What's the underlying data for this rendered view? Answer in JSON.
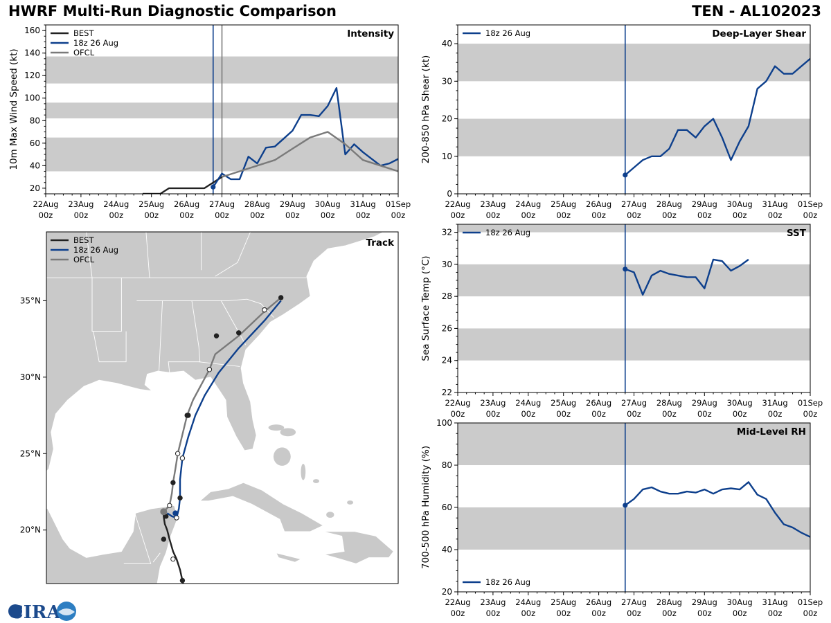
{
  "header": {
    "title_left": "HWRF Multi-Run Diagnostic Comparison",
    "title_right": "TEN - AL102023"
  },
  "colors": {
    "best": "#222222",
    "run": "#0d3f8c",
    "ofcl": "#7a7a7a",
    "band": "#cbcbcb"
  },
  "logo": {
    "text": "CIRA"
  },
  "chart_data": [
    {
      "id": "intensity",
      "type": "line",
      "title": "Intensity",
      "ylabel": "10m Max Wind Speed (kt)",
      "ylim": [
        15,
        165
      ],
      "yticks": [
        20,
        40,
        60,
        80,
        100,
        120,
        140,
        160
      ],
      "bands": [
        [
          35,
          65
        ],
        [
          82,
          96
        ],
        [
          113,
          137
        ]
      ],
      "x_unit": "days since 22 Aug 00z",
      "xlim": [
        0,
        10
      ],
      "xticks": [
        "22Aug\n00z",
        "23Aug\n00z",
        "24Aug\n00z",
        "25Aug\n00z",
        "26Aug\n00z",
        "27Aug\n00z",
        "28Aug\n00z",
        "29Aug\n00z",
        "30Aug\n00z",
        "31Aug\n00z",
        "01Sep\n00z"
      ],
      "vlines": [
        {
          "x": 4.75,
          "color": "run"
        },
        {
          "x": 5.0,
          "color": "ofcl"
        }
      ],
      "legend": [
        "BEST",
        "18z 26 Aug",
        "OFCL"
      ],
      "series": [
        {
          "name": "BEST",
          "color": "best",
          "x": [
            2.75,
            3.0,
            3.25,
            3.5,
            3.75,
            4.0,
            4.25,
            4.5,
            4.75,
            5.0
          ],
          "y": [
            15,
            15,
            15,
            20,
            20,
            20,
            20,
            20,
            25,
            30
          ]
        },
        {
          "name": "18z 26 Aug",
          "color": "run",
          "x": [
            4.75,
            5.0,
            5.25,
            5.5,
            5.75,
            6.0,
            6.25,
            6.5,
            6.75,
            7.0,
            7.25,
            7.5,
            7.75,
            8.0,
            8.25,
            8.5,
            8.75,
            9.0,
            9.25,
            9.5,
            9.75,
            10.0
          ],
          "y": [
            21,
            33,
            28,
            28,
            48,
            42,
            56,
            57,
            64,
            71,
            85,
            85,
            84,
            93,
            109,
            50,
            59,
            52,
            46,
            40,
            42,
            46
          ],
          "start_marker": true
        },
        {
          "name": "OFCL",
          "color": "ofcl",
          "x": [
            5.0,
            5.5,
            6.0,
            6.5,
            7.0,
            7.5,
            8.0,
            8.5,
            9.0,
            9.5,
            10.0
          ],
          "y": [
            30,
            35,
            40,
            45,
            55,
            65,
            70,
            59,
            45,
            40,
            35
          ]
        }
      ]
    },
    {
      "id": "shear",
      "type": "line",
      "title": "Deep-Layer Shear",
      "ylabel": "200-850 hPa Shear (kt)",
      "ylim": [
        0,
        45
      ],
      "yticks": [
        0,
        10,
        20,
        30,
        40
      ],
      "bands": [
        [
          10,
          20
        ],
        [
          30,
          40
        ]
      ],
      "x_unit": "days since 22 Aug 00z",
      "xlim": [
        0,
        10
      ],
      "xticks": [
        "22Aug\n00z",
        "23Aug\n00z",
        "24Aug\n00z",
        "25Aug\n00z",
        "26Aug\n00z",
        "27Aug\n00z",
        "28Aug\n00z",
        "29Aug\n00z",
        "30Aug\n00z",
        "31Aug\n00z",
        "01Sep\n00z"
      ],
      "vlines": [
        {
          "x": 4.75,
          "color": "run"
        }
      ],
      "legend": [
        "18z 26 Aug"
      ],
      "series": [
        {
          "name": "18z 26 Aug",
          "color": "run",
          "x": [
            4.75,
            5.0,
            5.25,
            5.5,
            5.75,
            6.0,
            6.25,
            6.5,
            6.75,
            7.0,
            7.25,
            7.5,
            7.75,
            8.0,
            8.25,
            8.5,
            8.75,
            9.0,
            9.25,
            9.5,
            9.75,
            10.0
          ],
          "y": [
            5,
            7,
            9,
            10,
            10,
            12,
            17,
            17,
            15,
            18,
            20,
            15,
            9,
            14,
            18,
            28,
            30,
            34,
            32,
            32,
            34,
            36
          ],
          "start_marker": true
        }
      ]
    },
    {
      "id": "track",
      "type": "line",
      "title": "Track",
      "lon_range": [
        -98,
        -68
      ],
      "lat_range": [
        16.5,
        39.5
      ],
      "ytick_labels": [
        "20°N",
        "25°N",
        "30°N",
        "35°N"
      ],
      "yticks": [
        20,
        25,
        30,
        35
      ],
      "legend": [
        "BEST",
        "18z 26 Aug",
        "OFCL"
      ],
      "series": [
        {
          "name": "BEST",
          "color": "best",
          "lon": [
            -86.2,
            -86.4,
            -86.6,
            -86.9,
            -87.2,
            -87.5,
            -87.7,
            -87.9,
            -88.0,
            -88.0,
            -87.8
          ],
          "lat": [
            16.1,
            16.7,
            17.4,
            18.1,
            18.6,
            19.4,
            20.0,
            20.4,
            20.9,
            21.2,
            21.1
          ],
          "markers": [
            [
              -86.4,
              16.7,
              "f"
            ],
            [
              -87.2,
              18.1,
              "o"
            ],
            [
              -88.0,
              19.4,
              "f"
            ],
            [
              -87.8,
              20.9,
              "f"
            ]
          ]
        },
        {
          "name": "18z 26 Aug",
          "color": "run",
          "lon": [
            -87.7,
            -87.3,
            -86.9,
            -86.7,
            -86.6,
            -86.6,
            -86.4,
            -85.9,
            -85.3,
            -84.5,
            -83.3,
            -81.6,
            -79.4,
            -78.0
          ],
          "lat": [
            21.1,
            20.9,
            20.8,
            21.4,
            22.1,
            23.3,
            24.7,
            26.1,
            27.5,
            28.8,
            30.3,
            31.9,
            33.7,
            35.0
          ],
          "markers": [
            [
              -86.9,
              20.8,
              "o"
            ],
            [
              -86.6,
              22.1,
              "f"
            ],
            [
              -86.4,
              24.7,
              "o"
            ],
            [
              -85.9,
              27.5,
              "f"
            ],
            [
              -84.1,
              30.5,
              "o"
            ],
            [
              -81.6,
              32.9,
              "f"
            ],
            [
              -79.4,
              34.4,
              "o"
            ]
          ]
        },
        {
          "name": "OFCL",
          "color": "ofcl",
          "lon": [
            -88.0,
            -87.5,
            -87.3,
            -87.2,
            -87.0,
            -86.8,
            -86.0,
            -85.5,
            -84.1,
            -83.6,
            -81.6,
            -79.4,
            -78.0
          ],
          "lat": [
            21.2,
            21.6,
            22.4,
            23.1,
            24.0,
            25.0,
            27.5,
            28.5,
            30.5,
            31.5,
            32.7,
            34.3,
            35.2
          ],
          "markers": [
            [
              -88.0,
              21.2,
              "g"
            ],
            [
              -87.5,
              21.6,
              "o"
            ],
            [
              -87.2,
              23.1,
              "f"
            ],
            [
              -86.8,
              25.0,
              "o"
            ],
            [
              -86.0,
              27.5,
              "f"
            ],
            [
              -84.1,
              30.5,
              "o"
            ],
            [
              -83.5,
              32.7,
              "f"
            ],
            [
              -79.4,
              34.4,
              "o"
            ],
            [
              -78.0,
              35.2,
              "f"
            ]
          ]
        }
      ]
    },
    {
      "id": "sst",
      "type": "line",
      "title": "SST",
      "ylabel": "Sea Surface Temp (°C)",
      "ylim": [
        22,
        32.5
      ],
      "yticks": [
        22,
        24,
        26,
        28,
        30,
        32
      ],
      "bands": [
        [
          24,
          26
        ],
        [
          28,
          30
        ],
        [
          32,
          33
        ]
      ],
      "x_unit": "days since 22 Aug 00z",
      "xlim": [
        0,
        10
      ],
      "xticks": [
        "22Aug\n00z",
        "23Aug\n00z",
        "24Aug\n00z",
        "25Aug\n00z",
        "26Aug\n00z",
        "27Aug\n00z",
        "28Aug\n00z",
        "29Aug\n00z",
        "30Aug\n00z",
        "31Aug\n00z",
        "01Sep\n00z"
      ],
      "vlines": [
        {
          "x": 4.75,
          "color": "run"
        }
      ],
      "legend": [
        "18z 26 Aug"
      ],
      "series": [
        {
          "name": "18z 26 Aug",
          "color": "run",
          "x": [
            4.75,
            5.0,
            5.25,
            5.5,
            5.75,
            6.0,
            6.25,
            6.5,
            6.75,
            7.0,
            7.25,
            7.5,
            7.75,
            8.0,
            8.25
          ],
          "y": [
            29.7,
            29.5,
            28.1,
            29.3,
            29.6,
            29.4,
            29.3,
            29.2,
            29.2,
            28.5,
            30.3,
            30.2,
            29.6,
            29.9,
            30.3
          ],
          "start_marker": true
        }
      ]
    },
    {
      "id": "rh",
      "type": "line",
      "title": "Mid-Level RH",
      "ylabel": "700-500 hPa Humidity (%)",
      "ylim": [
        20,
        100
      ],
      "yticks": [
        20,
        40,
        60,
        80,
        100
      ],
      "bands": [
        [
          40,
          60
        ],
        [
          80,
          100
        ]
      ],
      "x_unit": "days since 22 Aug 00z",
      "xlim": [
        0,
        10
      ],
      "xticks": [
        "22Aug\n00z",
        "23Aug\n00z",
        "24Aug\n00z",
        "25Aug\n00z",
        "26Aug\n00z",
        "27Aug\n00z",
        "28Aug\n00z",
        "29Aug\n00z",
        "30Aug\n00z",
        "31Aug\n00z",
        "01Sep\n00z"
      ],
      "vlines": [
        {
          "x": 4.75,
          "color": "run"
        }
      ],
      "legend": [
        "18z 26 Aug"
      ],
      "legend_loc": "bottom-left",
      "series": [
        {
          "name": "18z 26 Aug",
          "color": "run",
          "x": [
            4.75,
            5.0,
            5.25,
            5.5,
            5.75,
            6.0,
            6.25,
            6.5,
            6.75,
            7.0,
            7.25,
            7.5,
            7.75,
            8.0,
            8.25,
            8.5,
            8.75,
            9.0,
            9.25,
            9.5,
            9.75,
            10.0
          ],
          "y": [
            61,
            64,
            68.5,
            69.5,
            67.5,
            66.5,
            66.5,
            67.5,
            67,
            68.5,
            66.5,
            68.5,
            69,
            68.5,
            72,
            66,
            64,
            57.5,
            52,
            50.5,
            48,
            46
          ],
          "start_marker": true
        }
      ]
    }
  ]
}
